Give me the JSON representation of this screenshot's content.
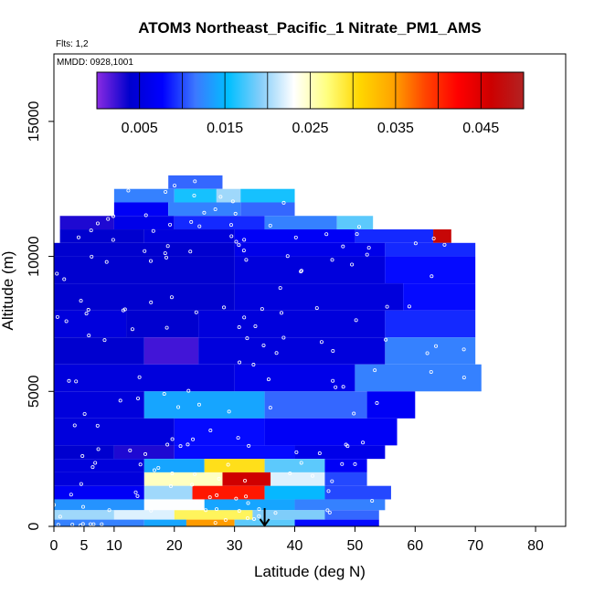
{
  "chart_data": {
    "type": "heatmap",
    "title": "ATOM3 Northeast_Pacific_1 Nitrate_PM1_AMS",
    "annotations": {
      "flights": "Flts: 1,2",
      "dates": "MMDD: 0928,1001"
    },
    "xlabel": "Latitude (deg N)",
    "ylabel": "Altitude (m)",
    "xlim": [
      0,
      85
    ],
    "ylim": [
      0,
      17500
    ],
    "x_ticks": [
      0,
      5,
      10,
      20,
      30,
      40,
      50,
      60,
      70,
      80
    ],
    "y_ticks": [
      0,
      5000,
      10000,
      15000
    ],
    "colorbar": {
      "min": 0.0,
      "max": 0.05,
      "tick_values": [
        0.005,
        0.015,
        0.025,
        0.035,
        0.045
      ],
      "tick_labels": [
        "0.005",
        "0.015",
        "0.025",
        "0.035",
        "0.045"
      ],
      "colors": [
        "#8a2be2",
        "#0000cd",
        "#0000ff",
        "#3c78ff",
        "#00bfff",
        "#87cefa",
        "#ffffff",
        "#ffff80",
        "#ffd700",
        "#ffa500",
        "#ff4500",
        "#ff0000",
        "#cd0000",
        "#b22222"
      ]
    },
    "level_rows": [
      {
        "alt": [
          12500,
          13000
        ],
        "segments": [
          {
            "lat": [
              19,
              28
            ],
            "v": 0.011
          }
        ]
      },
      {
        "alt": [
          12000,
          12500
        ],
        "segments": [
          {
            "lat": [
              10,
              20
            ],
            "v": 0.012
          },
          {
            "lat": [
              20,
              27
            ],
            "v": 0.016
          },
          {
            "lat": [
              27,
              31
            ],
            "v": 0.02
          },
          {
            "lat": [
              31,
              40
            ],
            "v": 0.016
          }
        ]
      },
      {
        "alt": [
          11500,
          12000
        ],
        "segments": [
          {
            "lat": [
              10,
              19
            ],
            "v": 0.007
          },
          {
            "lat": [
              19,
              31
            ],
            "v": 0.012
          },
          {
            "lat": [
              31,
              40
            ],
            "v": 0.011
          }
        ]
      },
      {
        "alt": [
          11000,
          11500
        ],
        "segments": [
          {
            "lat": [
              1,
              10
            ],
            "v": 0.003
          },
          {
            "lat": [
              10,
              20
            ],
            "v": 0.006
          },
          {
            "lat": [
              20,
              35
            ],
            "v": 0.009
          },
          {
            "lat": [
              35,
              47
            ],
            "v": 0.012
          },
          {
            "lat": [
              47,
              53
            ],
            "v": 0.018
          }
        ]
      },
      {
        "alt": [
          10500,
          11000
        ],
        "segments": [
          {
            "lat": [
              1,
              15
            ],
            "v": 0.004
          },
          {
            "lat": [
              15,
              30
            ],
            "v": 0.005
          },
          {
            "lat": [
              30,
              50
            ],
            "v": 0.007
          },
          {
            "lat": [
              50,
              63
            ],
            "v": 0.009
          },
          {
            "lat": [
              63,
              66
            ],
            "v": 0.047
          }
        ]
      },
      {
        "alt": [
          10000,
          10500
        ],
        "segments": [
          {
            "lat": [
              0,
              30
            ],
            "v": 0.004
          },
          {
            "lat": [
              30,
              55
            ],
            "v": 0.006
          },
          {
            "lat": [
              55,
              70
            ],
            "v": 0.009
          }
        ]
      },
      {
        "alt": [
          9000,
          10000
        ],
        "segments": [
          {
            "lat": [
              0,
              30
            ],
            "v": 0.004
          },
          {
            "lat": [
              30,
              55
            ],
            "v": 0.005
          },
          {
            "lat": [
              55,
              70
            ],
            "v": 0.008
          }
        ]
      },
      {
        "alt": [
          8000,
          9000
        ],
        "segments": [
          {
            "lat": [
              0,
              30
            ],
            "v": 0.004
          },
          {
            "lat": [
              30,
              58
            ],
            "v": 0.005
          },
          {
            "lat": [
              58,
              70
            ],
            "v": 0.008
          }
        ]
      },
      {
        "alt": [
          7000,
          8000
        ],
        "segments": [
          {
            "lat": [
              0,
              12
            ],
            "v": 0.005
          },
          {
            "lat": [
              12,
              24
            ],
            "v": 0.004
          },
          {
            "lat": [
              24,
              55
            ],
            "v": 0.005
          },
          {
            "lat": [
              55,
              70
            ],
            "v": 0.009
          }
        ]
      },
      {
        "alt": [
          6000,
          7000
        ],
        "segments": [
          {
            "lat": [
              0,
              15
            ],
            "v": 0.004
          },
          {
            "lat": [
              15,
              24
            ],
            "v": 0.002
          },
          {
            "lat": [
              24,
              55
            ],
            "v": 0.005
          },
          {
            "lat": [
              55,
              70
            ],
            "v": 0.012
          }
        ]
      },
      {
        "alt": [
          5000,
          6000
        ],
        "segments": [
          {
            "lat": [
              0,
              30
            ],
            "v": 0.005
          },
          {
            "lat": [
              30,
              50
            ],
            "v": 0.006
          },
          {
            "lat": [
              50,
              71
            ],
            "v": 0.012
          }
        ]
      },
      {
        "alt": [
          4000,
          5000
        ],
        "segments": [
          {
            "lat": [
              0,
              15
            ],
            "v": 0.005
          },
          {
            "lat": [
              15,
              35
            ],
            "v": 0.014
          },
          {
            "lat": [
              35,
              52
            ],
            "v": 0.011
          },
          {
            "lat": [
              52,
              60
            ],
            "v": 0.007
          }
        ]
      },
      {
        "alt": [
          3000,
          4000
        ],
        "segments": [
          {
            "lat": [
              0,
              20
            ],
            "v": 0.005
          },
          {
            "lat": [
              20,
              35
            ],
            "v": 0.008
          },
          {
            "lat": [
              35,
              57
            ],
            "v": 0.007
          }
        ]
      },
      {
        "alt": [
          2500,
          3000
        ],
        "segments": [
          {
            "lat": [
              0,
              10
            ],
            "v": 0.004
          },
          {
            "lat": [
              10,
              20
            ],
            "v": 0.003
          },
          {
            "lat": [
              20,
              40
            ],
            "v": 0.008
          },
          {
            "lat": [
              40,
              55
            ],
            "v": 0.006
          }
        ]
      },
      {
        "alt": [
          2000,
          2500
        ],
        "segments": [
          {
            "lat": [
              0,
              15
            ],
            "v": 0.005
          },
          {
            "lat": [
              15,
              25
            ],
            "v": 0.014
          },
          {
            "lat": [
              25,
              35
            ],
            "v": 0.03
          },
          {
            "lat": [
              35,
              45
            ],
            "v": 0.018
          },
          {
            "lat": [
              45,
              52
            ],
            "v": 0.007
          }
        ]
      },
      {
        "alt": [
          1500,
          2000
        ],
        "segments": [
          {
            "lat": [
              0,
              15
            ],
            "v": 0.005
          },
          {
            "lat": [
              15,
              28
            ],
            "v": 0.025
          },
          {
            "lat": [
              28,
              36
            ],
            "v": 0.046
          },
          {
            "lat": [
              36,
              45
            ],
            "v": 0.022
          },
          {
            "lat": [
              45,
              52
            ],
            "v": 0.01
          }
        ]
      },
      {
        "alt": [
          1000,
          1500
        ],
        "segments": [
          {
            "lat": [
              0,
              15
            ],
            "v": 0.007
          },
          {
            "lat": [
              15,
              23
            ],
            "v": 0.02
          },
          {
            "lat": [
              23,
              35
            ],
            "v": 0.041
          },
          {
            "lat": [
              35,
              45
            ],
            "v": 0.015
          },
          {
            "lat": [
              45,
              56
            ],
            "v": 0.01
          }
        ]
      },
      {
        "alt": [
          600,
          1000
        ],
        "segments": [
          {
            "lat": [
              0,
              15
            ],
            "v": 0.013
          },
          {
            "lat": [
              15,
              25
            ],
            "v": 0.023
          },
          {
            "lat": [
              25,
              40
            ],
            "v": 0.014
          },
          {
            "lat": [
              40,
              55
            ],
            "v": 0.012
          }
        ]
      },
      {
        "alt": [
          250,
          600
        ],
        "segments": [
          {
            "lat": [
              0,
              10
            ],
            "v": 0.02
          },
          {
            "lat": [
              10,
              20
            ],
            "v": 0.022
          },
          {
            "lat": [
              20,
              33
            ],
            "v": 0.028
          },
          {
            "lat": [
              33,
              45
            ],
            "v": 0.019
          },
          {
            "lat": [
              45,
              54
            ],
            "v": 0.011
          }
        ]
      },
      {
        "alt": [
          0,
          250
        ],
        "segments": [
          {
            "lat": [
              0,
              15
            ],
            "v": 0.012
          },
          {
            "lat": [
              15,
              22
            ],
            "v": 0.014
          },
          {
            "lat": [
              22,
              30
            ],
            "v": 0.035
          },
          {
            "lat": [
              30,
              40
            ],
            "v": 0.018
          },
          {
            "lat": [
              40,
              54
            ],
            "v": 0.008
          }
        ]
      }
    ],
    "marker": {
      "lat": 35,
      "alt": 0,
      "symbol": "down-arrow"
    },
    "grid": false,
    "legend": "colorbar-top"
  }
}
